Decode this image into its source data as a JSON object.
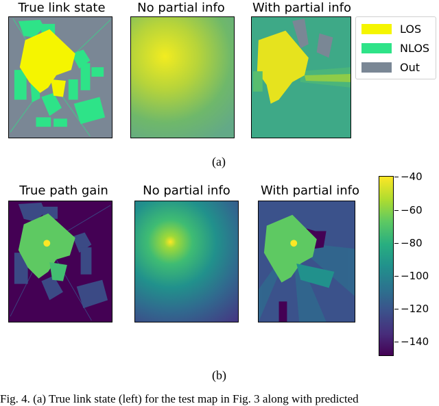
{
  "row_a": {
    "titles": [
      "True link state",
      "No partial info",
      "With partial info"
    ],
    "legend": [
      {
        "label": "LOS",
        "color": "#f5f500"
      },
      {
        "label": "NLOS",
        "color": "#2ee388"
      },
      {
        "label": "Out",
        "color": "#7a8795"
      }
    ]
  },
  "row_b": {
    "titles": [
      "True path gain",
      "No partial info",
      "With partial info"
    ],
    "colorbar_ticks": [
      "−40",
      "−60",
      "−80",
      "−100",
      "−120",
      "−140"
    ]
  },
  "sublabels": {
    "a": "(a)",
    "b": "(b)"
  },
  "caption": "Fig. 4.  (a) True link state (left) for the test map in Fig. 3 along with predicted"
}
